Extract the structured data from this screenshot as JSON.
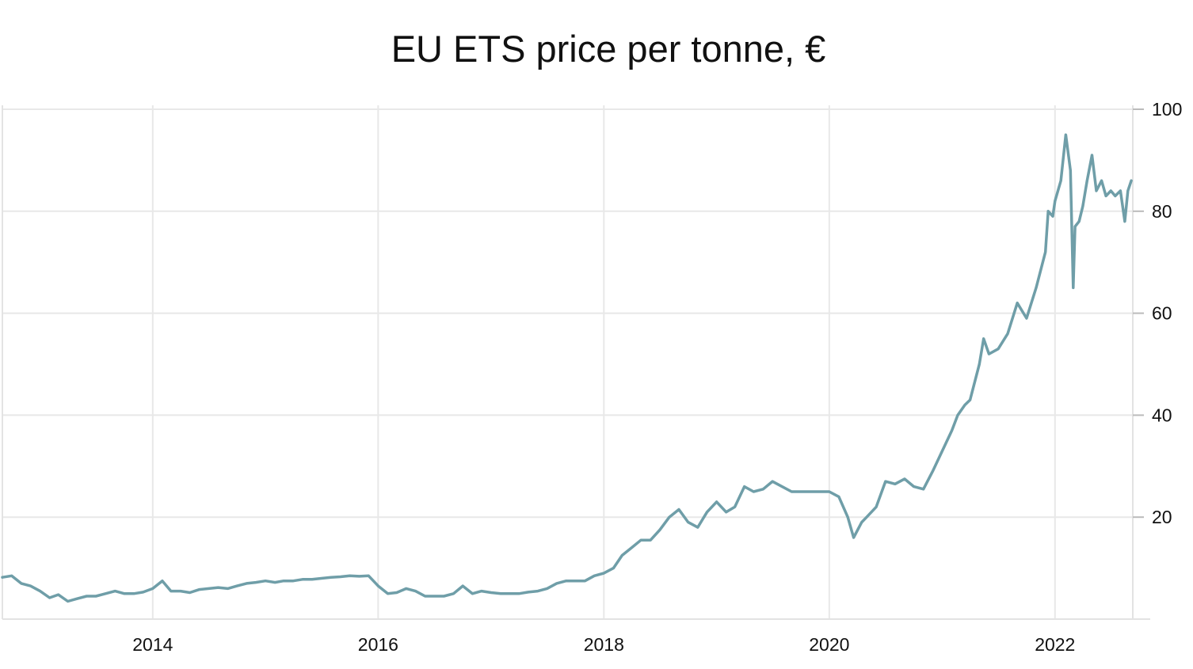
{
  "chart_data": {
    "type": "line",
    "title": "EU ETS price per tonne, €",
    "xlabel": "",
    "ylabel": "",
    "x_ticks": [
      "2014",
      "2016",
      "2018",
      "2020",
      "2022"
    ],
    "x_range": [
      "2012-09-01",
      "2022-09-10"
    ],
    "y_ticks": [
      20,
      40,
      60,
      80,
      100
    ],
    "ylim": [
      0,
      100
    ],
    "y_axis_position": "right",
    "grid": true,
    "legend": "none",
    "colors": {
      "line": "#6f9ea8",
      "grid": "#e8e8e8",
      "axis": "#d5d5d5"
    },
    "series": [
      {
        "x": [
          "2012-09-01",
          "2012-10-01",
          "2012-11-01",
          "2012-12-01",
          "2013-01-01",
          "2013-02-01",
          "2013-03-01",
          "2013-04-01",
          "2013-05-01",
          "2013-06-01",
          "2013-07-01",
          "2013-08-01",
          "2013-09-01",
          "2013-10-01",
          "2013-11-01",
          "2013-12-01",
          "2014-01-01",
          "2014-02-01",
          "2014-03-01",
          "2014-04-01",
          "2014-05-01",
          "2014-06-01",
          "2014-07-01",
          "2014-08-01",
          "2014-09-01",
          "2014-10-01",
          "2014-11-01",
          "2014-12-01",
          "2015-01-01",
          "2015-02-01",
          "2015-03-01",
          "2015-04-01",
          "2015-05-01",
          "2015-06-01",
          "2015-07-01",
          "2015-08-01",
          "2015-09-01",
          "2015-10-01",
          "2015-11-01",
          "2015-12-01",
          "2016-01-01",
          "2016-02-01",
          "2016-03-01",
          "2016-04-01",
          "2016-05-01",
          "2016-06-01",
          "2016-07-01",
          "2016-08-01",
          "2016-09-01",
          "2016-10-01",
          "2016-11-01",
          "2016-12-01",
          "2017-01-01",
          "2017-02-01",
          "2017-03-01",
          "2017-04-01",
          "2017-05-01",
          "2017-06-01",
          "2017-07-01",
          "2017-08-01",
          "2017-09-01",
          "2017-10-01",
          "2017-11-01",
          "2017-12-01",
          "2018-01-01",
          "2018-02-01",
          "2018-03-01",
          "2018-04-01",
          "2018-05-01",
          "2018-06-01",
          "2018-07-01",
          "2018-08-01",
          "2018-09-01",
          "2018-10-01",
          "2018-11-01",
          "2018-12-01",
          "2019-01-01",
          "2019-02-01",
          "2019-03-01",
          "2019-04-01",
          "2019-05-01",
          "2019-06-01",
          "2019-07-01",
          "2019-08-01",
          "2019-09-01",
          "2019-10-01",
          "2019-11-01",
          "2019-12-01",
          "2020-01-01",
          "2020-02-01",
          "2020-03-01",
          "2020-03-20",
          "2020-04-15",
          "2020-05-01",
          "2020-06-01",
          "2020-07-01",
          "2020-08-01",
          "2020-09-01",
          "2020-10-01",
          "2020-11-01",
          "2020-12-01",
          "2021-01-01",
          "2021-02-01",
          "2021-02-20",
          "2021-03-15",
          "2021-04-01",
          "2021-05-01",
          "2021-05-15",
          "2021-06-01",
          "2021-07-01",
          "2021-08-01",
          "2021-09-01",
          "2021-10-01",
          "2021-11-01",
          "2021-12-01",
          "2021-12-10",
          "2021-12-25",
          "2022-01-01",
          "2022-01-20",
          "2022-02-05",
          "2022-02-20",
          "2022-03-01",
          "2022-03-07",
          "2022-03-20",
          "2022-04-01",
          "2022-04-15",
          "2022-05-01",
          "2022-05-15",
          "2022-06-01",
          "2022-06-15",
          "2022-07-01",
          "2022-07-15",
          "2022-08-01",
          "2022-08-15",
          "2022-08-25",
          "2022-09-05"
        ],
        "y": [
          8.2,
          8.5,
          7.0,
          6.5,
          5.5,
          4.2,
          4.8,
          3.5,
          4.0,
          4.5,
          4.5,
          5.0,
          5.5,
          5.0,
          5.0,
          5.3,
          6.0,
          7.5,
          5.5,
          5.5,
          5.2,
          5.8,
          6.0,
          6.2,
          6.0,
          6.5,
          7.0,
          7.2,
          7.5,
          7.2,
          7.5,
          7.5,
          7.8,
          7.8,
          8.0,
          8.2,
          8.3,
          8.5,
          8.4,
          8.5,
          6.5,
          5.0,
          5.2,
          6.0,
          5.5,
          4.5,
          4.5,
          4.5,
          5.0,
          6.5,
          5.0,
          5.5,
          5.2,
          5.0,
          5.0,
          5.0,
          5.3,
          5.5,
          6.0,
          7.0,
          7.5,
          7.5,
          7.5,
          8.5,
          9.0,
          10.0,
          12.5,
          14.0,
          15.5,
          15.5,
          17.5,
          20.0,
          21.5,
          19.0,
          18.0,
          21.0,
          23.0,
          21.0,
          22.0,
          26.0,
          25.0,
          25.5,
          27.0,
          26.0,
          25.0,
          25.0,
          25.0,
          25.0,
          25.0,
          24.0,
          20.0,
          16.0,
          19.0,
          20.0,
          22.0,
          27.0,
          26.5,
          27.5,
          26.0,
          25.5,
          29.0,
          33.0,
          37.0,
          40.0,
          42.0,
          43.0,
          50.0,
          55.0,
          52.0,
          53.0,
          56.0,
          62.0,
          59.0,
          65.0,
          72.0,
          80.0,
          79.0,
          82.0,
          86.0,
          95.0,
          88.0,
          65.0,
          77.0,
          78.0,
          81.0,
          86.0,
          91.0,
          84.0,
          86.0,
          83.0,
          84.0,
          83.0,
          84.0,
          78.0,
          84.0,
          86.0
        ]
      }
    ]
  }
}
